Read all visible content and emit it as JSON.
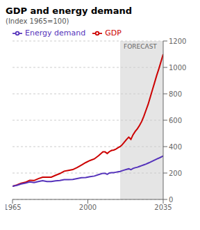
{
  "chart_data": {
    "type": "line",
    "title": "GDP and energy demand",
    "subtitle": "(Index 1965=100)",
    "annotations": [
      {
        "label": "FORECAST",
        "x": 2015
      }
    ],
    "x": [
      1965,
      1967,
      1969,
      1971,
      1973,
      1975,
      1977,
      1979,
      1981,
      1983,
      1985,
      1987,
      1989,
      1991,
      1993,
      1995,
      1997,
      1999,
      2001,
      2003,
      2005,
      2007,
      2008,
      2009,
      2010,
      2011,
      2012,
      2013,
      2014,
      2015,
      2016,
      2017,
      2018,
      2019,
      2020,
      2021,
      2022,
      2023,
      2024,
      2025,
      2026,
      2027,
      2028,
      2029,
      2030,
      2031,
      2032,
      2033,
      2034,
      2035
    ],
    "series": [
      {
        "name": "GDP",
        "color": "#cc0000",
        "values": [
          100,
          109,
          122,
          130,
          145,
          143,
          157,
          168,
          168,
          169,
          183,
          196,
          214,
          220,
          226,
          241,
          260,
          279,
          295,
          307,
          332,
          360,
          360,
          348,
          362,
          371,
          374,
          381,
          391,
          400,
          415,
          435,
          455,
          472,
          455,
          490,
          515,
          535,
          560,
          590,
          630,
          675,
          720,
          775,
          830,
          885,
          940,
          990,
          1045,
          1100
        ]
      },
      {
        "name": "Energy demand",
        "color": "#5533bb",
        "values": [
          100,
          107,
          117,
          124,
          133,
          128,
          136,
          142,
          136,
          135,
          141,
          143,
          150,
          150,
          151,
          158,
          165,
          166,
          172,
          177,
          188,
          198,
          198,
          190,
          200,
          203,
          203,
          206,
          209,
          212,
          218,
          223,
          228,
          232,
          225,
          235,
          240,
          244,
          250,
          256,
          262,
          268,
          275,
          282,
          290,
          298,
          306,
          313,
          321,
          330
        ]
      }
    ],
    "xlim": [
      1965,
      2035
    ],
    "xticks": [
      1965,
      2000,
      2035
    ],
    "ylim": [
      0,
      1200
    ],
    "yticks": [
      0,
      200,
      400,
      600,
      800,
      1000,
      1200
    ],
    "grid": true,
    "legend": "upper left"
  }
}
